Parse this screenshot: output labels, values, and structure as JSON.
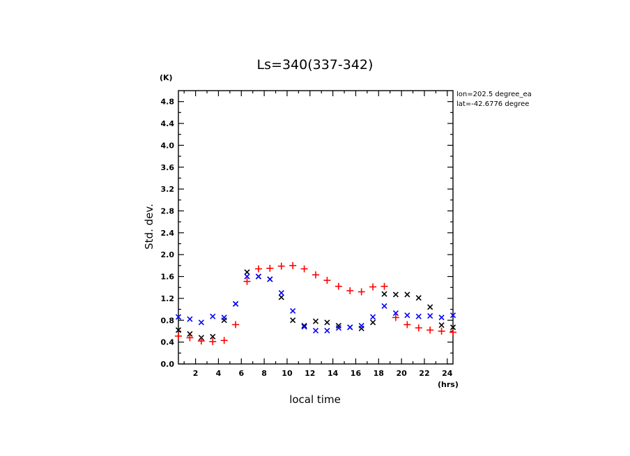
{
  "chart_data": {
    "type": "scatter",
    "title": "Ls=340(337-342)",
    "xlabel": "local time",
    "ylabel": "Std. dev.",
    "x_unit": "(hrs)",
    "y_unit": "(K)",
    "xlim": [
      0.5,
      24.5
    ],
    "ylim": [
      0.0,
      5.0
    ],
    "xticks": [
      2,
      4,
      6,
      8,
      10,
      12,
      14,
      16,
      18,
      20,
      22,
      24
    ],
    "yticks": [
      0.0,
      0.4,
      0.8,
      1.2,
      1.6,
      2.0,
      2.4,
      2.8,
      3.2,
      3.6,
      4.0,
      4.4,
      4.8
    ],
    "ytick_labels": [
      "0.0",
      "0.4",
      "0.8",
      "1.2",
      "1.6",
      "2.0",
      "2.4",
      "2.8",
      "3.2",
      "3.6",
      "4.0",
      "4.4",
      "4.8"
    ],
    "annotations": [
      "lon=202.5 degree_ea",
      "lat=-42.6776 degree"
    ],
    "grid": false,
    "x": [
      0.5,
      1.5,
      2.5,
      3.5,
      4.5,
      5.5,
      6.5,
      7.5,
      8.5,
      9.5,
      10.5,
      11.5,
      12.5,
      13.5,
      14.5,
      15.5,
      16.5,
      17.5,
      18.5,
      19.5,
      20.5,
      21.5,
      22.5,
      23.5,
      24.5
    ],
    "series": [
      {
        "marker": "x",
        "color": "#000000",
        "values": [
          0.62,
          0.55,
          0.48,
          0.5,
          0.8,
          1.1,
          1.68,
          1.6,
          1.55,
          1.22,
          0.8,
          0.7,
          0.78,
          0.76,
          0.7,
          0.67,
          0.65,
          0.76,
          1.28,
          1.27,
          1.27,
          1.21,
          1.04,
          0.71,
          0.67
        ]
      },
      {
        "marker": "x",
        "color": "#0000ff",
        "values": [
          0.86,
          0.82,
          0.76,
          0.87,
          0.85,
          1.1,
          1.6,
          1.6,
          1.55,
          1.3,
          0.97,
          0.68,
          0.61,
          0.61,
          0.66,
          0.67,
          0.7,
          0.86,
          1.06,
          0.93,
          0.89,
          0.87,
          0.88,
          0.85,
          0.89
        ]
      },
      {
        "marker": "+",
        "color": "#ff0000",
        "values": [
          0.51,
          0.48,
          0.42,
          0.41,
          0.43,
          0.72,
          1.51,
          1.74,
          1.75,
          1.79,
          1.8,
          1.74,
          1.63,
          1.53,
          1.42,
          1.34,
          1.32,
          1.41,
          1.42,
          0.85,
          0.72,
          0.66,
          0.62,
          0.6,
          0.58
        ]
      }
    ]
  }
}
